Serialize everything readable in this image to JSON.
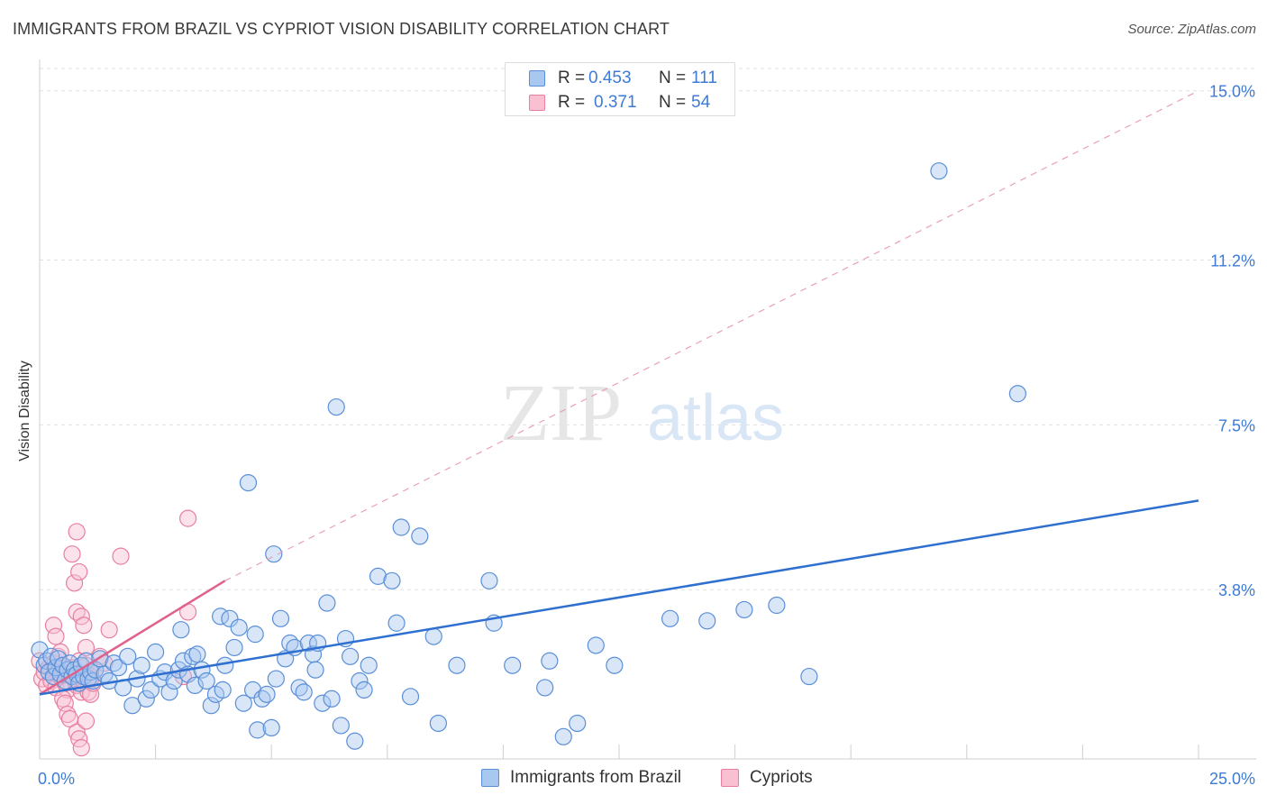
{
  "title": "IMMIGRANTS FROM BRAZIL VS CYPRIOT VISION DISABILITY CORRELATION CHART",
  "source": "Source: ZipAtlas.com",
  "watermark": {
    "part1": "ZIP",
    "part2": "atlas"
  },
  "legend": {
    "rows": [
      {
        "r_label": "R =",
        "r_value": "0.453",
        "n_label": "N =",
        "n_value": "111",
        "color": "#a8c8f0",
        "edge": "#5a8fd8"
      },
      {
        "r_label": "R =",
        "r_value": "0.371",
        "n_label": "N =",
        "n_value": "54",
        "color": "#f9c0d2",
        "edge": "#e87ea0"
      }
    ]
  },
  "bottom_legend": [
    {
      "label": "Immigrants from Brazil",
      "color": "#a8c8f0",
      "edge": "#5a8fd8"
    },
    {
      "label": "Cypriots",
      "color": "#f9c0d2",
      "edge": "#e87ea0"
    }
  ],
  "chart_data": {
    "type": "scatter",
    "title": "IMMIGRANTS FROM BRAZIL VS CYPRIOT VISION DISABILITY CORRELATION CHART",
    "xlabel": "",
    "ylabel": "Vision Disability",
    "xlim": [
      0,
      25
    ],
    "ylim": [
      0,
      15.5
    ],
    "x_ticks": [
      0,
      2.5,
      5,
      7.5,
      10,
      12.5,
      15,
      17.5,
      20,
      22.5,
      25
    ],
    "x_tick_labels_shown": [
      {
        "value": 0,
        "label": "0.0%"
      },
      {
        "value": 25,
        "label": "25.0%"
      }
    ],
    "y_ticks": [
      {
        "value": 3.8,
        "label": "3.8%"
      },
      {
        "value": 7.5,
        "label": "7.5%"
      },
      {
        "value": 11.2,
        "label": "11.2%"
      },
      {
        "value": 15.0,
        "label": "15.0%"
      }
    ],
    "grid": "horizontal dashed",
    "series": [
      {
        "name": "Immigrants from Brazil",
        "color": "#a8c8f0",
        "edge": "#5a8fd8",
        "trend": {
          "x": [
            0,
            25
          ],
          "y": [
            1.45,
            5.8
          ],
          "color": "#2f6fd0",
          "style": "solid"
        },
        "points": [
          [
            0.0,
            2.45
          ],
          [
            0.1,
            2.1
          ],
          [
            0.15,
            2.2
          ],
          [
            0.2,
            1.95
          ],
          [
            0.25,
            2.3
          ],
          [
            0.3,
            1.85
          ],
          [
            0.35,
            2.05
          ],
          [
            0.4,
            2.25
          ],
          [
            0.45,
            1.9
          ],
          [
            0.5,
            2.1
          ],
          [
            0.55,
            1.75
          ],
          [
            0.6,
            2.0
          ],
          [
            0.65,
            2.15
          ],
          [
            0.7,
            1.85
          ],
          [
            0.75,
            2.0
          ],
          [
            0.8,
            1.9
          ],
          [
            0.85,
            1.7
          ],
          [
            0.9,
            2.1
          ],
          [
            0.95,
            1.85
          ],
          [
            1.0,
            2.2
          ],
          [
            1.05,
            1.8
          ],
          [
            1.1,
            1.95
          ],
          [
            1.15,
            1.75
          ],
          [
            1.2,
            2.0
          ],
          [
            1.3,
            2.25
          ],
          [
            1.4,
            1.9
          ],
          [
            1.5,
            1.75
          ],
          [
            1.6,
            2.15
          ],
          [
            1.7,
            2.05
          ],
          [
            1.8,
            1.6
          ],
          [
            1.9,
            2.3
          ],
          [
            2.0,
            1.2
          ],
          [
            2.1,
            1.8
          ],
          [
            2.2,
            2.1
          ],
          [
            2.3,
            1.35
          ],
          [
            2.4,
            1.55
          ],
          [
            2.5,
            2.4
          ],
          [
            2.6,
            1.8
          ],
          [
            2.7,
            1.95
          ],
          [
            2.8,
            1.5
          ],
          [
            2.9,
            1.75
          ],
          [
            3.0,
            2.0
          ],
          [
            3.05,
            2.9
          ],
          [
            3.1,
            2.2
          ],
          [
            3.2,
            1.9
          ],
          [
            3.3,
            2.3
          ],
          [
            3.35,
            1.65
          ],
          [
            3.4,
            2.35
          ],
          [
            3.5,
            2.0
          ],
          [
            3.6,
            1.75
          ],
          [
            3.7,
            1.2
          ],
          [
            3.8,
            1.45
          ],
          [
            3.9,
            3.2
          ],
          [
            3.95,
            1.55
          ],
          [
            4.0,
            2.1
          ],
          [
            4.1,
            3.15
          ],
          [
            4.2,
            2.5
          ],
          [
            4.3,
            2.95
          ],
          [
            4.4,
            1.25
          ],
          [
            4.5,
            6.2
          ],
          [
            4.6,
            1.55
          ],
          [
            4.65,
            2.8
          ],
          [
            4.7,
            0.65
          ],
          [
            4.8,
            1.35
          ],
          [
            4.9,
            1.45
          ],
          [
            5.0,
            0.7
          ],
          [
            5.05,
            4.6
          ],
          [
            5.1,
            1.8
          ],
          [
            5.2,
            3.15
          ],
          [
            5.3,
            2.25
          ],
          [
            5.4,
            2.6
          ],
          [
            5.5,
            2.5
          ],
          [
            5.6,
            1.6
          ],
          [
            5.7,
            1.5
          ],
          [
            5.8,
            2.6
          ],
          [
            5.9,
            2.35
          ],
          [
            5.95,
            2.0
          ],
          [
            6.0,
            2.6
          ],
          [
            6.1,
            1.25
          ],
          [
            6.2,
            3.5
          ],
          [
            6.3,
            1.35
          ],
          [
            6.4,
            7.9
          ],
          [
            6.5,
            0.75
          ],
          [
            6.6,
            2.7
          ],
          [
            6.7,
            2.3
          ],
          [
            6.8,
            0.4
          ],
          [
            6.9,
            1.75
          ],
          [
            7.0,
            1.55
          ],
          [
            7.1,
            2.1
          ],
          [
            7.3,
            4.1
          ],
          [
            7.6,
            4.0
          ],
          [
            7.7,
            3.05
          ],
          [
            7.8,
            5.2
          ],
          [
            8.0,
            1.4
          ],
          [
            8.2,
            5.0
          ],
          [
            8.5,
            2.75
          ],
          [
            8.6,
            0.8
          ],
          [
            9.0,
            2.1
          ],
          [
            9.7,
            4.0
          ],
          [
            9.8,
            3.05
          ],
          [
            10.2,
            2.1
          ],
          [
            10.9,
            1.6
          ],
          [
            11.0,
            2.2
          ],
          [
            11.3,
            0.5
          ],
          [
            11.6,
            0.8
          ],
          [
            12.0,
            2.55
          ],
          [
            12.4,
            2.1
          ],
          [
            13.6,
            3.15
          ],
          [
            14.4,
            3.1
          ],
          [
            15.2,
            3.35
          ],
          [
            15.9,
            3.45
          ],
          [
            16.6,
            1.85
          ],
          [
            19.4,
            13.2
          ],
          [
            21.1,
            8.2
          ]
        ]
      },
      {
        "name": "Cypriots",
        "color": "#f9c0d2",
        "edge": "#e87ea0",
        "trend": {
          "x": [
            0,
            4.0
          ],
          "y": [
            1.45,
            4.0
          ],
          "color": "#e0628c",
          "style": "solid"
        },
        "trend_extension": {
          "x": [
            4.0,
            25
          ],
          "y": [
            4.0,
            15.0
          ],
          "style": "dashed"
        },
        "points": [
          [
            0.0,
            2.2
          ],
          [
            0.05,
            1.8
          ],
          [
            0.1,
            1.95
          ],
          [
            0.15,
            1.65
          ],
          [
            0.2,
            2.05
          ],
          [
            0.25,
            1.75
          ],
          [
            0.3,
            2.15
          ],
          [
            0.35,
            1.6
          ],
          [
            0.4,
            2.0
          ],
          [
            0.45,
            1.85
          ],
          [
            0.5,
            2.1
          ],
          [
            0.55,
            1.7
          ],
          [
            0.6,
            1.55
          ],
          [
            0.65,
            1.9
          ],
          [
            0.7,
            2.05
          ],
          [
            0.75,
            1.8
          ],
          [
            0.8,
            1.65
          ],
          [
            0.85,
            2.2
          ],
          [
            0.9,
            1.5
          ],
          [
            0.95,
            1.75
          ],
          [
            1.0,
            2.1
          ],
          [
            1.1,
            1.85
          ],
          [
            0.3,
            3.0
          ],
          [
            0.35,
            2.75
          ],
          [
            0.4,
            2.3
          ],
          [
            0.45,
            2.4
          ],
          [
            0.5,
            1.35
          ],
          [
            0.55,
            1.25
          ],
          [
            0.6,
            1.0
          ],
          [
            0.65,
            0.9
          ],
          [
            0.7,
            4.6
          ],
          [
            0.75,
            3.95
          ],
          [
            0.8,
            3.3
          ],
          [
            0.85,
            4.2
          ],
          [
            0.9,
            3.2
          ],
          [
            0.95,
            3.0
          ],
          [
            1.0,
            2.5
          ],
          [
            1.05,
            1.5
          ],
          [
            1.1,
            1.45
          ],
          [
            1.15,
            1.7
          ],
          [
            0.8,
            0.6
          ],
          [
            0.85,
            0.45
          ],
          [
            0.9,
            0.25
          ],
          [
            1.0,
            0.85
          ],
          [
            1.1,
            1.8
          ],
          [
            1.2,
            2.0
          ],
          [
            1.3,
            2.3
          ],
          [
            1.4,
            2.15
          ],
          [
            0.8,
            5.1
          ],
          [
            1.5,
            2.9
          ],
          [
            1.75,
            4.55
          ],
          [
            3.2,
            5.4
          ],
          [
            3.2,
            3.3
          ],
          [
            3.1,
            1.85
          ]
        ]
      }
    ]
  }
}
